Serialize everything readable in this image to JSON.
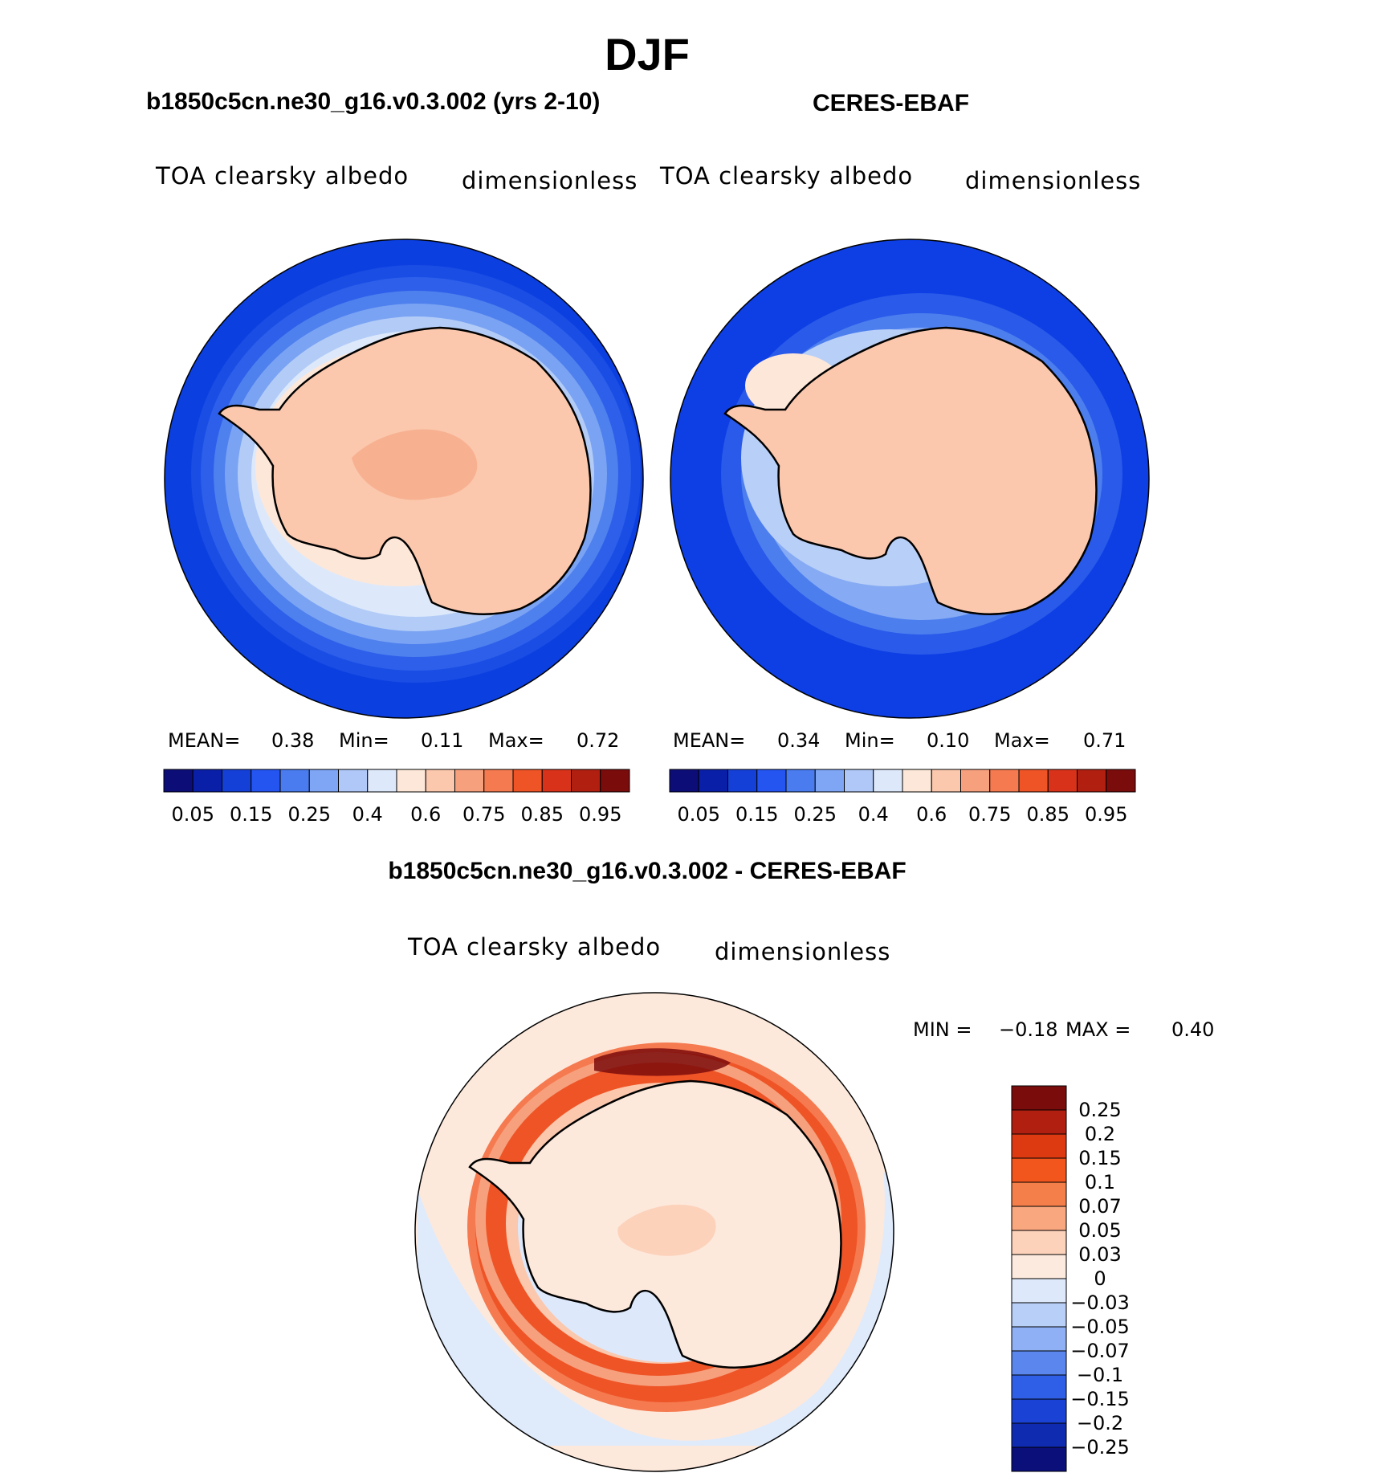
{
  "figure": {
    "title": "DJF",
    "panel_left_title": "b1850c5cn.ne30_g16.v0.3.002 (yrs 2-10)",
    "panel_right_title": "CERES-EBAF",
    "panel_diff_title": "b1850c5cn.ne30_g16.v0.3.002 - CERES-EBAF"
  },
  "panels": [
    {
      "variable": "TOA clearsky albedo",
      "units": "dimensionless",
      "mean_label": "MEAN=",
      "mean": "0.38",
      "min_label": "Min=",
      "min": "0.11",
      "max_label": "Max=",
      "max": "0.72"
    },
    {
      "variable": "TOA clearsky albedo",
      "units": "dimensionless",
      "mean_label": "MEAN=",
      "mean": "0.34",
      "min_label": "Min=",
      "min": "0.10",
      "max_label": "Max=",
      "max": "0.71"
    }
  ],
  "diff_panel": {
    "variable": "TOA clearsky albedo",
    "units": "dimensionless",
    "min_label": "MIN =",
    "min": "−0.18",
    "max_label": "MAX =",
    "max": "0.40"
  },
  "colorbar_main": {
    "colors": [
      "#0d0d78",
      "#0a1fa8",
      "#1540d8",
      "#2455f0",
      "#4a7cf0",
      "#7ea6f5",
      "#b0c8f7",
      "#dde9fb",
      "#fde7d9",
      "#fbc7ad",
      "#f7a07e",
      "#f57a50",
      "#ee5426",
      "#d8331a",
      "#b01f10",
      "#7b0c0c"
    ],
    "tick_labels": [
      "0.05",
      "0.15",
      "0.25",
      "0.4",
      "0.6",
      "0.75",
      "0.85",
      "0.95"
    ]
  },
  "colorbar_diff": {
    "colors": [
      "#7b0c0c",
      "#b01f10",
      "#de3a12",
      "#f2561c",
      "#f57f4a",
      "#f9a77f",
      "#fcd2bb",
      "#fdeade",
      "#dde9fb",
      "#b8cff7",
      "#8fb0f5",
      "#5a86ee",
      "#2f5fe6",
      "#1a43d6",
      "#0f2bb0",
      "#0a0f7a"
    ],
    "tick_labels": [
      "0.25",
      "0.2",
      "0.15",
      "0.1",
      "0.07",
      "0.05",
      "0.03",
      "0",
      "−0.03",
      "−0.05",
      "−0.07",
      "−0.1",
      "−0.15",
      "−0.2",
      "−0.25"
    ]
  },
  "colors": {
    "ocean_model": "#0c3fe0",
    "ocean_obs": "#0d3fe4",
    "land": "#fbc8ae",
    "diff_background": "#fde9dc"
  }
}
